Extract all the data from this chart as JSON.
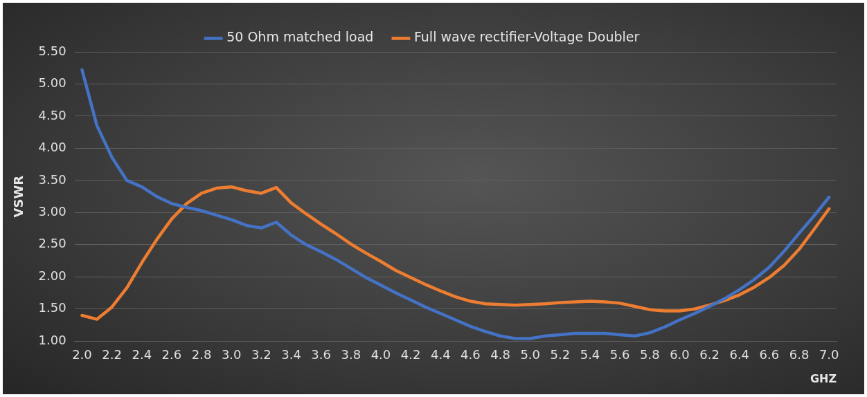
{
  "chart_data": {
    "type": "line",
    "xlabel": "GHZ",
    "ylabel": "VSWR",
    "categories": [
      "2.0",
      null,
      "2.2",
      null,
      "2.4",
      null,
      "2.6",
      null,
      "2.8",
      null,
      "3.0",
      null,
      "3.2",
      null,
      "3.4",
      null,
      "3.6",
      null,
      "3.8",
      null,
      "4.0",
      null,
      "4.2",
      null,
      "4.4",
      null,
      "4.6",
      null,
      "4.8",
      null,
      "5.0",
      null,
      "5.2",
      null,
      "5.4",
      null,
      "5.6",
      null,
      "5.8",
      null,
      "6.0",
      null,
      "6.2",
      null,
      "6.4",
      null,
      "6.6",
      null,
      "6.8",
      null,
      "7.0"
    ],
    "series": [
      {
        "name": "50 Ohm matched load",
        "color": "#4472c4",
        "values": [
          5.22,
          4.35,
          3.86,
          3.5,
          3.4,
          3.25,
          3.14,
          3.08,
          3.03,
          2.96,
          2.89,
          2.8,
          2.76,
          2.85,
          2.65,
          2.5,
          2.39,
          2.27,
          2.13,
          1.99,
          1.87,
          1.75,
          1.64,
          1.53,
          1.43,
          1.33,
          1.23,
          1.15,
          1.08,
          1.04,
          1.04,
          1.08,
          1.1,
          1.12,
          1.12,
          1.12,
          1.1,
          1.08,
          1.13,
          1.22,
          1.33,
          1.43,
          1.54,
          1.66,
          1.8,
          1.96,
          2.15,
          2.4,
          2.68,
          2.95,
          3.24
        ]
      },
      {
        "name": "Full wave rectifier-Voltage Doubler",
        "color": "#ed7d31",
        "values": [
          1.4,
          1.34,
          1.53,
          1.83,
          2.22,
          2.58,
          2.9,
          3.14,
          3.3,
          3.38,
          3.4,
          3.34,
          3.3,
          3.39,
          3.15,
          2.98,
          2.82,
          2.67,
          2.51,
          2.37,
          2.24,
          2.1,
          1.99,
          1.88,
          1.78,
          1.69,
          1.62,
          1.58,
          1.57,
          1.56,
          1.57,
          1.58,
          1.6,
          1.61,
          1.62,
          1.61,
          1.59,
          1.54,
          1.49,
          1.47,
          1.47,
          1.5,
          1.56,
          1.63,
          1.72,
          1.84,
          1.99,
          2.18,
          2.43,
          2.74,
          3.06
        ]
      }
    ],
    "ylim": [
      1,
      5.5
    ],
    "yticks": [
      {
        "value": 1,
        "label": "1.00"
      },
      {
        "value": 1.5,
        "label": "1.50"
      },
      {
        "value": 2,
        "label": "2.00"
      },
      {
        "value": 2.5,
        "label": "2.50"
      },
      {
        "value": 3,
        "label": "3.00"
      },
      {
        "value": 3.5,
        "label": "3.50"
      },
      {
        "value": 4,
        "label": "4.00"
      },
      {
        "value": 4.5,
        "label": "4.50"
      },
      {
        "value": 5,
        "label": "5.00"
      },
      {
        "value": 5.5,
        "label": "5.50"
      }
    ],
    "grid": "y",
    "legend": "top",
    "marker": "none",
    "line_style": "solid"
  }
}
